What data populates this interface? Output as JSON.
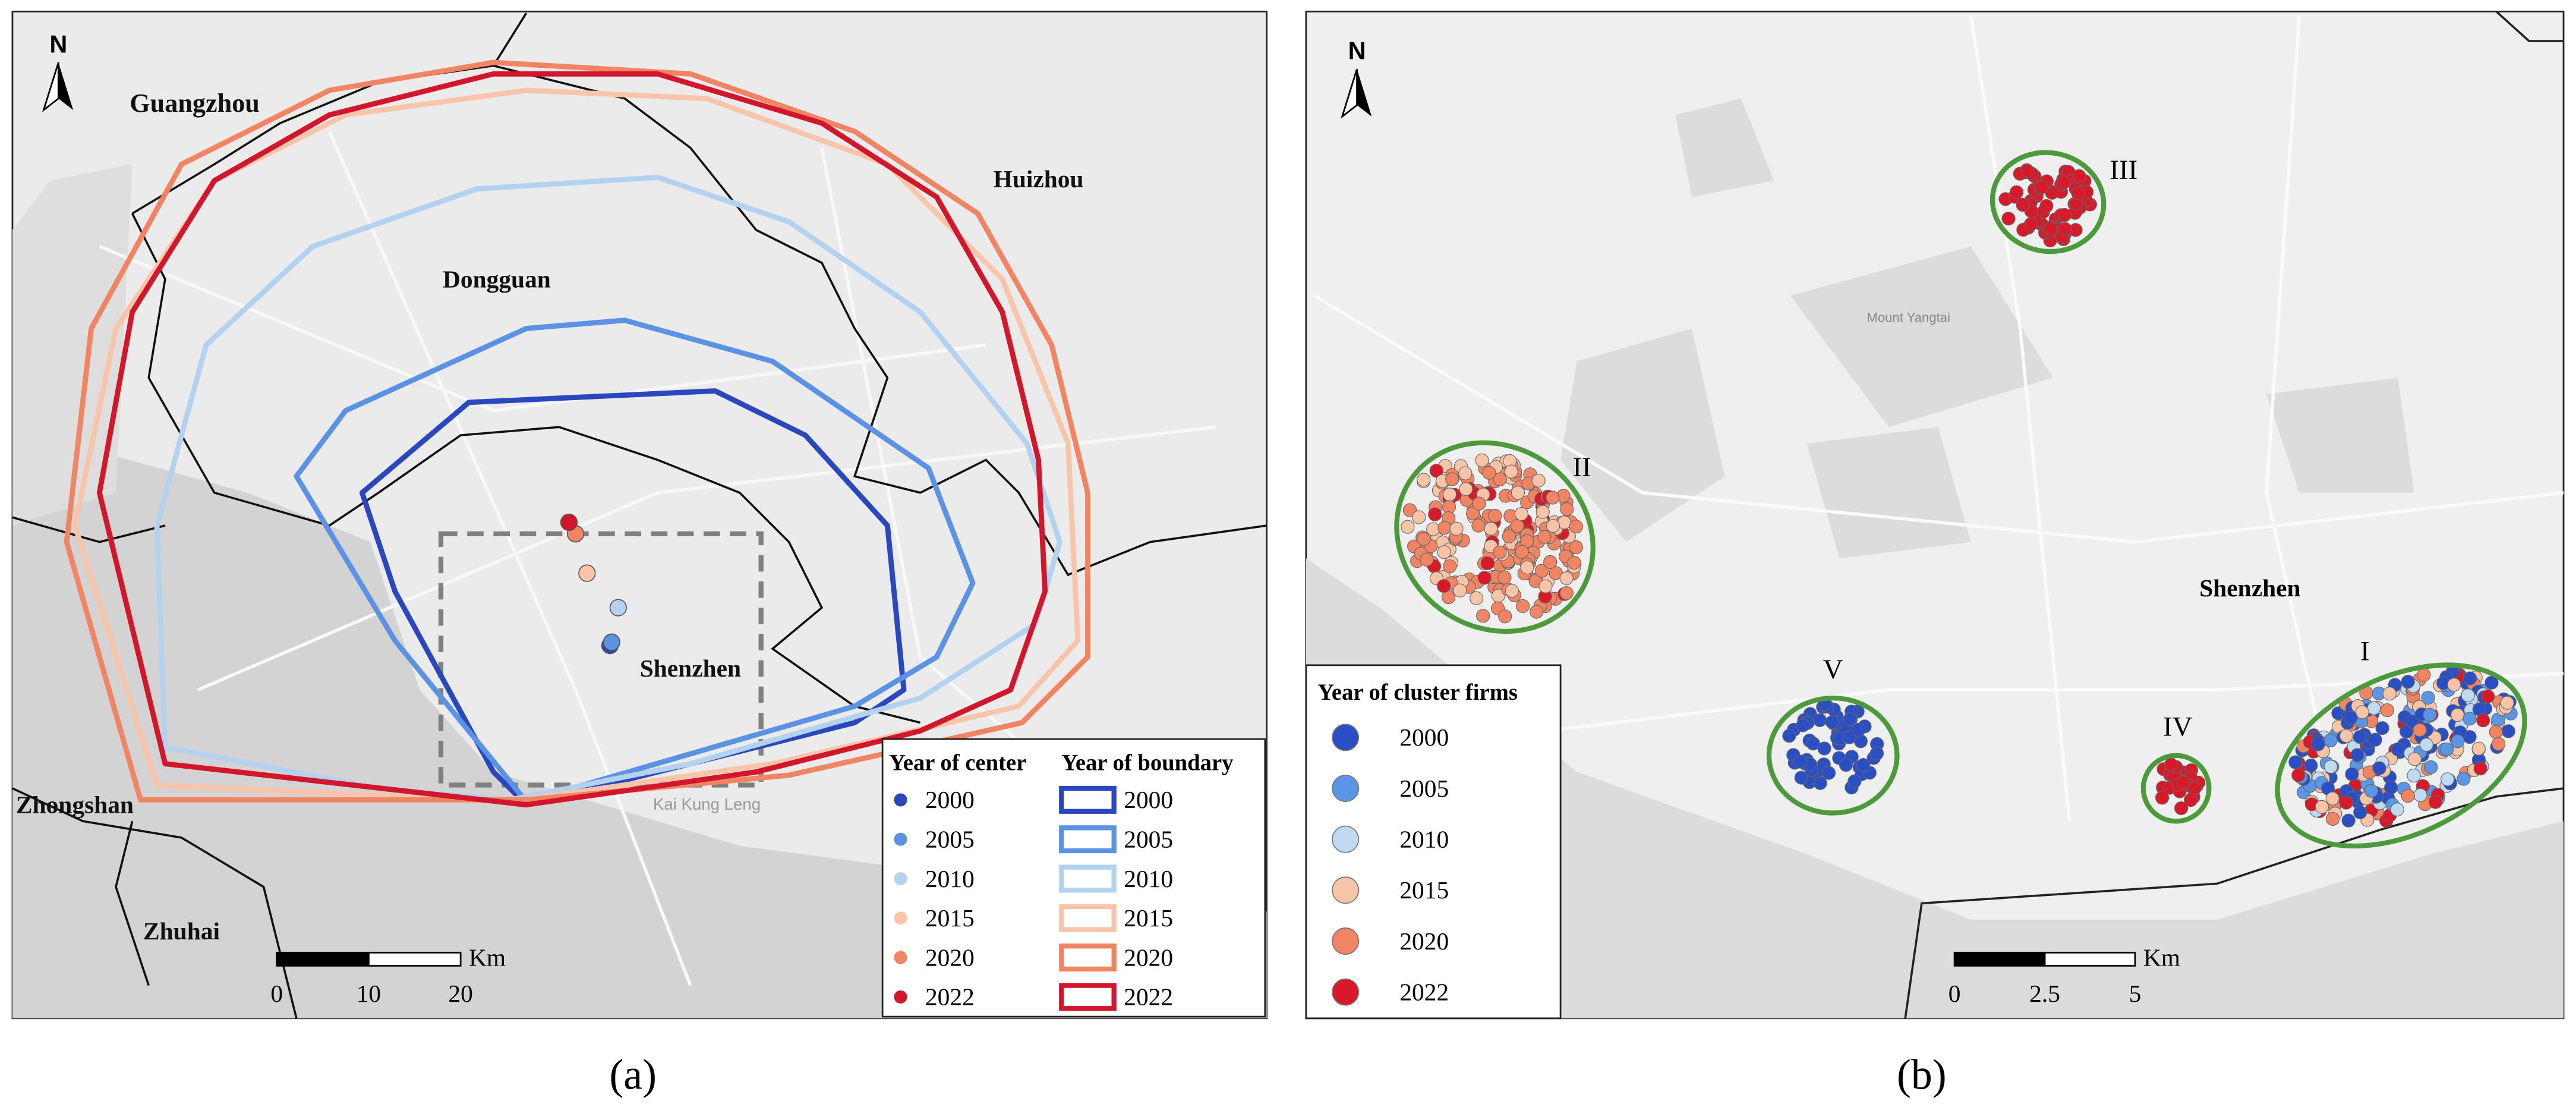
{
  "panel_a": {
    "label": "(a)",
    "north": "N",
    "places": [
      "Guangzhou",
      "Huizhou",
      "Dongguan",
      "Shenzhen",
      "Zhongshan",
      "Zhuhai",
      "Kai Kung Leng"
    ],
    "center_legend_title": "Year of center",
    "boundary_legend_title": "Year of boundary",
    "years": [
      {
        "year": 2000,
        "color": "#2a47bd"
      },
      {
        "year": 2005,
        "color": "#5b92e4"
      },
      {
        "year": 2010,
        "color": "#b3d2f0"
      },
      {
        "year": 2015,
        "color": "#f8c5aa"
      },
      {
        "year": 2020,
        "color": "#f08463"
      },
      {
        "year": 2022,
        "color": "#d2162b"
      }
    ],
    "scale": {
      "unit": "Km",
      "ticks": [
        0,
        10,
        20
      ]
    }
  },
  "panel_b": {
    "label": "(b)",
    "north": "N",
    "places": [
      "Shenzhen",
      "Mount Yangtai"
    ],
    "clusters": [
      "I",
      "II",
      "III",
      "IV",
      "V"
    ],
    "legend_title": "Year of cluster firms",
    "years": [
      {
        "year": 2000,
        "color": "#2a4fc4"
      },
      {
        "year": 2005,
        "color": "#5a95e6"
      },
      {
        "year": 2010,
        "color": "#c0daf2"
      },
      {
        "year": 2015,
        "color": "#f8c4a8"
      },
      {
        "year": 2020,
        "color": "#f08463"
      },
      {
        "year": 2022,
        "color": "#d7192a"
      }
    ],
    "scale": {
      "unit": "Km",
      "ticks": [
        0,
        2.5,
        5
      ]
    }
  }
}
